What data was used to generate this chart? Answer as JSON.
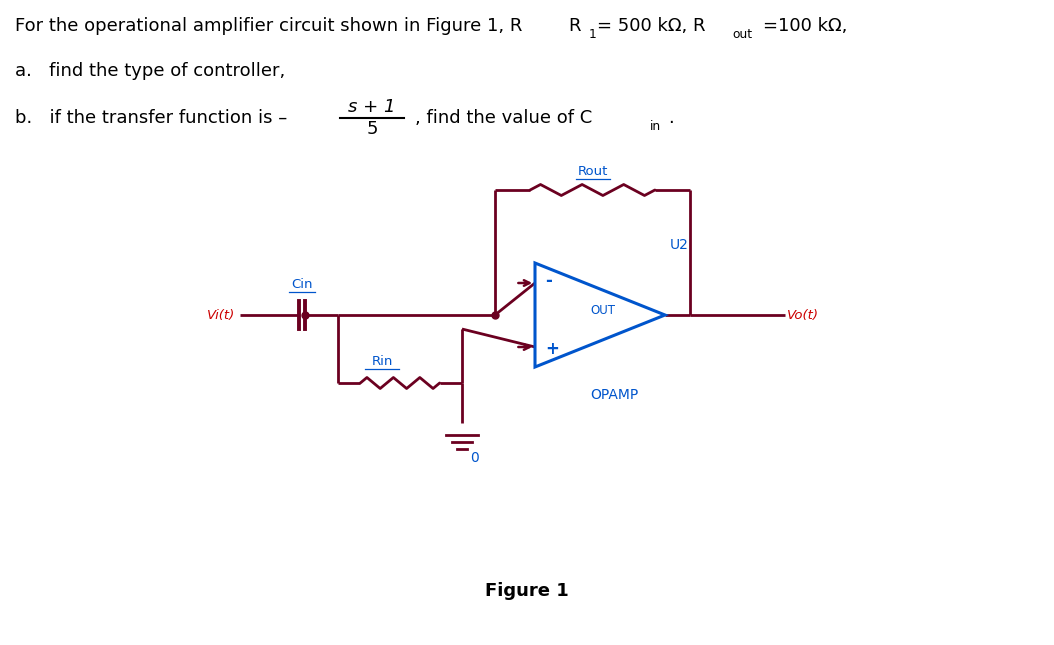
{
  "line1_main": "For the operational amplifier circuit shown in Figure 1, R",
  "line1_r1_label": "1",
  "line1_mid": "= 500 kΩ, R",
  "line1_rout_label": "out",
  "line1_end": "=100 kΩ,",
  "line2": "a.   find the type of controller,",
  "line3_pre": "b.   if the transfer function is – ",
  "line3_num": "s + 1",
  "line3_den": "5",
  "line3_post": ", find the value of C",
  "line3_sub": "in",
  "line3_dot": ".",
  "figure_label": "Figure 1",
  "label_Rout": "Rout",
  "label_Cin": "Cin",
  "label_Rin": "Rin",
  "label_Vi": "Vi(t)",
  "label_Vo": "Vo(t)",
  "label_U2": "U2",
  "label_OPAMP": "OPAMP",
  "label_OUT": "OUT",
  "label_minus": "-",
  "label_plus": "+",
  "label_ground": "0",
  "color_red": "#cc0000",
  "color_blue": "#0055cc",
  "color_circuit": "#6B0020",
  "bg_color": "#ffffff",
  "lw": 2.0
}
